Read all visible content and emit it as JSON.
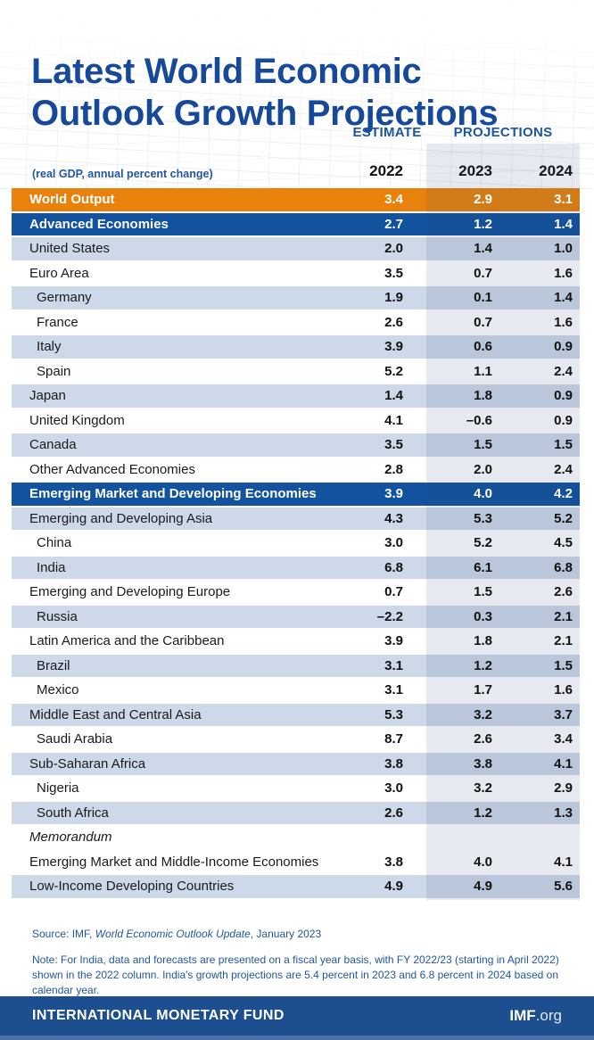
{
  "colors": {
    "title_blue": "#17499B",
    "accent_orange": "#E8820C",
    "header_row_blue": "#12529E",
    "light_row_blue": "#CDD9E8",
    "white_row": "#FFFFFF",
    "projection_tint": "rgba(47,76,125,0.12)",
    "footnote_blue": "#2057A0",
    "footer_bar_blue": "#1D4F90",
    "footer_strip_blue": "#4C6FA4"
  },
  "header": {
    "title_line1": "Latest World Economic",
    "title_line2": "Outlook Growth Projections",
    "estimate_label": "ESTIMATE",
    "projections_label": "PROJECTIONS",
    "subtitle": "(real GDP, annual percent change)",
    "years": [
      "2022",
      "2023",
      "2024"
    ]
  },
  "chart_data": {
    "type": "table",
    "title": "Latest World Economic Outlook Growth Projections",
    "unit": "real GDP, annual percent change",
    "columns": [
      "2022",
      "2023",
      "2024"
    ],
    "column_groups": {
      "estimate": [
        "2022"
      ],
      "projections": [
        "2023",
        "2024"
      ]
    },
    "rows": [
      {
        "label": "World Output",
        "style": "orange",
        "indent": false,
        "italic": false,
        "values": [
          "3.4",
          "2.9",
          "3.1"
        ]
      },
      {
        "label": "Advanced Economies",
        "style": "blue",
        "indent": false,
        "italic": false,
        "values": [
          "2.7",
          "1.2",
          "1.4"
        ]
      },
      {
        "label": "United States",
        "style": "light",
        "indent": false,
        "italic": false,
        "values": [
          "2.0",
          "1.4",
          "1.0"
        ]
      },
      {
        "label": "Euro Area",
        "style": "white",
        "indent": false,
        "italic": false,
        "values": [
          "3.5",
          "0.7",
          "1.6"
        ]
      },
      {
        "label": "Germany",
        "style": "light",
        "indent": true,
        "italic": false,
        "values": [
          "1.9",
          "0.1",
          "1.4"
        ]
      },
      {
        "label": "France",
        "style": "white",
        "indent": true,
        "italic": false,
        "values": [
          "2.6",
          "0.7",
          "1.6"
        ]
      },
      {
        "label": "Italy",
        "style": "light",
        "indent": true,
        "italic": false,
        "values": [
          "3.9",
          "0.6",
          "0.9"
        ]
      },
      {
        "label": "Spain",
        "style": "white",
        "indent": true,
        "italic": false,
        "values": [
          "5.2",
          "1.1",
          "2.4"
        ]
      },
      {
        "label": "Japan",
        "style": "light",
        "indent": false,
        "italic": false,
        "values": [
          "1.4",
          "1.8",
          "0.9"
        ]
      },
      {
        "label": "United Kingdom",
        "style": "white",
        "indent": false,
        "italic": false,
        "values": [
          "4.1",
          "–0.6",
          "0.9"
        ]
      },
      {
        "label": "Canada",
        "style": "light",
        "indent": false,
        "italic": false,
        "values": [
          "3.5",
          "1.5",
          "1.5"
        ]
      },
      {
        "label": "Other Advanced Economies",
        "style": "white",
        "indent": false,
        "italic": false,
        "values": [
          "2.8",
          "2.0",
          "2.4"
        ]
      },
      {
        "label": "Emerging Market and Developing Economies",
        "style": "blue",
        "indent": false,
        "italic": false,
        "values": [
          "3.9",
          "4.0",
          "4.2"
        ]
      },
      {
        "label": "Emerging and Developing Asia",
        "style": "light",
        "indent": false,
        "italic": false,
        "values": [
          "4.3",
          "5.3",
          "5.2"
        ]
      },
      {
        "label": "China",
        "style": "white",
        "indent": true,
        "italic": false,
        "values": [
          "3.0",
          "5.2",
          "4.5"
        ]
      },
      {
        "label": "India",
        "style": "light",
        "indent": true,
        "italic": false,
        "values": [
          "6.8",
          "6.1",
          "6.8"
        ]
      },
      {
        "label": "Emerging and Developing Europe",
        "style": "white",
        "indent": false,
        "italic": false,
        "values": [
          "0.7",
          "1.5",
          "2.6"
        ]
      },
      {
        "label": "Russia",
        "style": "light",
        "indent": true,
        "italic": false,
        "values": [
          "–2.2",
          "0.3",
          "2.1"
        ]
      },
      {
        "label": "Latin America and the Caribbean",
        "style": "white",
        "indent": false,
        "italic": false,
        "values": [
          "3.9",
          "1.8",
          "2.1"
        ]
      },
      {
        "label": "Brazil",
        "style": "light",
        "indent": true,
        "italic": false,
        "values": [
          "3.1",
          "1.2",
          "1.5"
        ]
      },
      {
        "label": "Mexico",
        "style": "white",
        "indent": true,
        "italic": false,
        "values": [
          "3.1",
          "1.7",
          "1.6"
        ]
      },
      {
        "label": "Middle East and Central Asia",
        "style": "light",
        "indent": false,
        "italic": false,
        "values": [
          "5.3",
          "3.2",
          "3.7"
        ]
      },
      {
        "label": "Saudi Arabia",
        "style": "white",
        "indent": true,
        "italic": false,
        "values": [
          "8.7",
          "2.6",
          "3.4"
        ]
      },
      {
        "label": "Sub-Saharan Africa",
        "style": "light",
        "indent": false,
        "italic": false,
        "values": [
          "3.8",
          "3.8",
          "4.1"
        ]
      },
      {
        "label": "Nigeria",
        "style": "white",
        "indent": true,
        "italic": false,
        "values": [
          "3.0",
          "3.2",
          "2.9"
        ]
      },
      {
        "label": "South Africa",
        "style": "light",
        "indent": true,
        "italic": false,
        "values": [
          "2.6",
          "1.2",
          "1.3"
        ]
      },
      {
        "label": "Memorandum",
        "style": "white",
        "indent": false,
        "italic": true,
        "values": []
      },
      {
        "label": "Emerging Market and Middle-Income Economies",
        "style": "white",
        "indent": false,
        "italic": false,
        "values": [
          "3.8",
          "4.0",
          "4.1"
        ]
      },
      {
        "label": "Low-Income Developing Countries",
        "style": "light",
        "indent": false,
        "italic": false,
        "values": [
          "4.9",
          "4.9",
          "5.6"
        ]
      }
    ]
  },
  "footnotes": {
    "source_prefix": "Source: IMF, ",
    "source_title": "World Economic Outlook Update",
    "source_suffix": ", January 2023",
    "note": "Note: For India, data and forecasts are presented on a fiscal year basis, with FY 2022/23 (starting in April 2022) shown in the 2022 column. India's growth projections are 5.4 percent in 2023 and 6.8 percent in 2024 based on calendar year."
  },
  "footer": {
    "organization": "INTERNATIONAL MONETARY FUND",
    "site_bold": "IMF",
    "site_suffix": ".org"
  }
}
